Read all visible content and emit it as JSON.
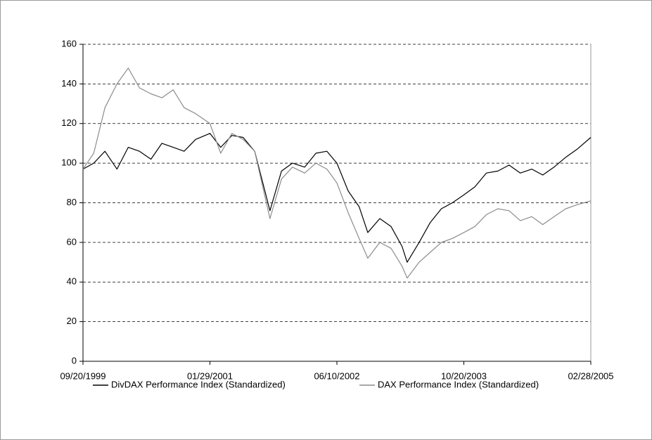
{
  "chart_data": {
    "type": "line",
    "x": [
      "09/20/1999",
      "11/01/1999",
      "12/15/1999",
      "01/31/2000",
      "03/15/2000",
      "04/28/2000",
      "06/12/2000",
      "07/25/2000",
      "09/07/2000",
      "10/20/2000",
      "12/04/2000",
      "01/29/2001",
      "03/12/2001",
      "04/25/2001",
      "06/08/2001",
      "07/23/2001",
      "09/21/2001",
      "11/05/2001",
      "12/18/2001",
      "02/04/2002",
      "03/20/2002",
      "05/02/2002",
      "06/10/2002",
      "07/24/2002",
      "09/05/2002",
      "10/09/2002",
      "11/25/2002",
      "01/08/2003",
      "02/20/2003",
      "03/12/2003",
      "04/28/2003",
      "06/10/2003",
      "07/24/2003",
      "09/05/2003",
      "10/20/2003",
      "12/02/2003",
      "01/16/2004",
      "03/01/2004",
      "04/14/2004",
      "05/28/2004",
      "07/12/2004",
      "08/24/2004",
      "10/07/2004",
      "11/22/2004",
      "01/05/2005",
      "02/28/2005"
    ],
    "series": [
      {
        "name": "DivDAX Performance Index (Standardized)",
        "color": "#000000",
        "values": [
          97,
          100,
          106,
          97,
          108,
          106,
          102,
          110,
          108,
          106,
          112,
          115,
          108,
          114,
          113,
          106,
          76,
          96,
          100,
          98,
          105,
          106,
          100,
          86,
          78,
          65,
          72,
          68,
          58,
          50,
          60,
          70,
          77,
          80,
          84,
          88,
          95,
          96,
          99,
          95,
          97,
          94,
          98,
          103,
          107,
          113
        ]
      },
      {
        "name": "DAX Performance Index (Standardized)",
        "color": "#8c8c8c",
        "values": [
          97,
          105,
          128,
          140,
          148,
          138,
          135,
          133,
          137,
          128,
          125,
          120,
          105,
          115,
          112,
          106,
          72,
          92,
          98,
          95,
          100,
          97,
          90,
          75,
          62,
          52,
          60,
          57,
          48,
          42,
          50,
          55,
          60,
          62,
          65,
          68,
          74,
          77,
          76,
          71,
          73,
          69,
          73,
          77,
          79,
          81
        ]
      }
    ],
    "xlim": [
      "09/20/1999",
      "02/28/2005"
    ],
    "xticks": [
      "09/20/1999",
      "01/29/2001",
      "06/10/2002",
      "10/20/2003",
      "02/28/2005"
    ],
    "ylim": [
      0,
      160
    ],
    "yticks": [
      0,
      20,
      40,
      60,
      80,
      100,
      120,
      140,
      160
    ],
    "grid": true
  }
}
